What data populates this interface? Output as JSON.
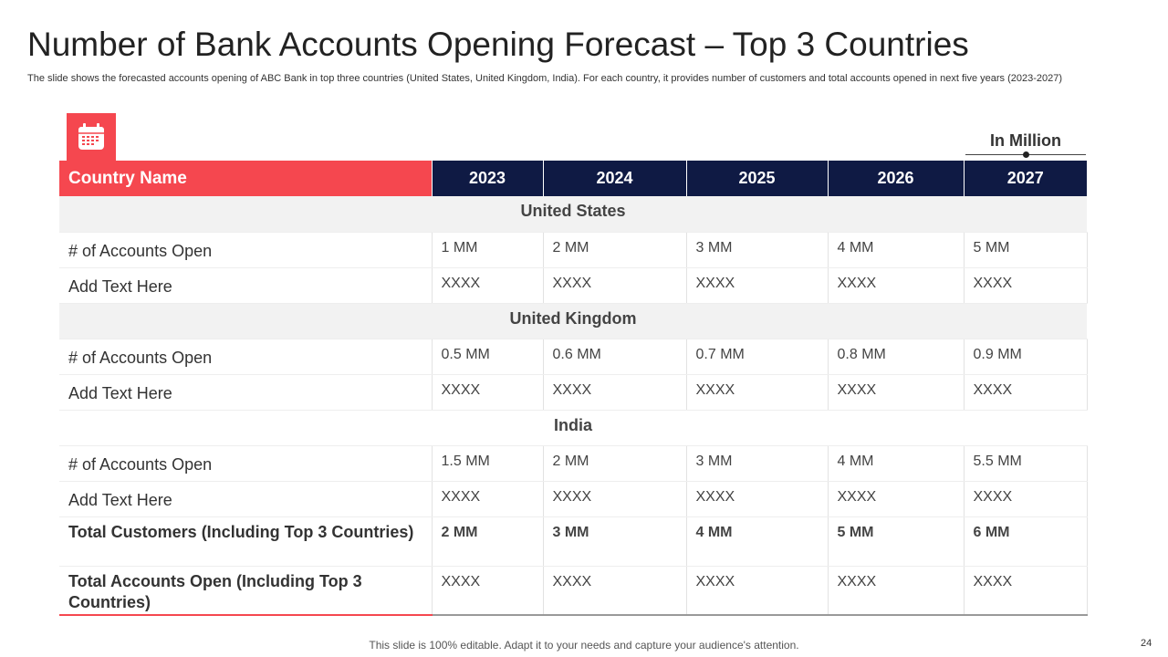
{
  "title": "Number of Bank Accounts Opening Forecast – Top 3 Countries",
  "subtitle": "The slide shows the forecasted accounts opening of ABC Bank in top three countries (United States, United Kingdom, India). For each country, it provides number of customers and total accounts opened in next five years (2023-2027)",
  "icon": "calendar-icon",
  "accent_color": "#f5474f",
  "header_color": "#0f1a44",
  "unit_label": "In Million",
  "table": {
    "country_header": "Country Name",
    "years": [
      "2023",
      "2024",
      "2025",
      "2026",
      "2027"
    ],
    "sections": [
      {
        "name": "United States",
        "rows": [
          {
            "label": "# of Accounts Open",
            "values": [
              "1 MM",
              "2 MM",
              "3 MM",
              "4 MM",
              "5 MM"
            ]
          },
          {
            "label": "Add Text Here",
            "values": [
              "XXXX",
              "XXXX",
              "XXXX",
              "XXXX",
              "XXXX"
            ]
          }
        ]
      },
      {
        "name": "United Kingdom",
        "rows": [
          {
            "label": "# of Accounts Open",
            "values": [
              "0.5 MM",
              "0.6 MM",
              "0.7 MM",
              "0.8 MM",
              "0.9 MM"
            ]
          },
          {
            "label": "Add Text Here",
            "values": [
              "XXXX",
              "XXXX",
              "XXXX",
              "XXXX",
              "XXXX"
            ]
          }
        ]
      },
      {
        "name": "India",
        "rows": [
          {
            "label": "# of Accounts Open",
            "values": [
              "1.5 MM",
              "2 MM",
              "3 MM",
              "4 MM",
              "5.5 MM"
            ]
          },
          {
            "label": "Add Text Here",
            "values": [
              "XXXX",
              "XXXX",
              "XXXX",
              "XXXX",
              "XXXX"
            ]
          }
        ]
      }
    ],
    "totals": [
      {
        "label": "Total Customers (Including Top 3 Countries)",
        "values": [
          "2 MM",
          "3 MM",
          "4 MM",
          "5 MM",
          "6 MM"
        ]
      },
      {
        "label": "Total Accounts Open (Including Top 3 Countries)",
        "values": [
          "XXXX",
          "XXXX",
          "XXXX",
          "XXXX",
          "XXXX"
        ]
      }
    ]
  },
  "footer": "This slide is 100% editable. Adapt it to your needs and capture your audience's attention.",
  "page_number": "24"
}
